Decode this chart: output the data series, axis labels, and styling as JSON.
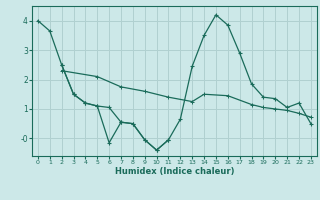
{
  "xlabel": "Humidex (Indice chaleur)",
  "bg_color": "#cce8e8",
  "grid_color": "#b0d0d0",
  "line_color": "#1a6b5a",
  "xlim": [
    -0.5,
    23.5
  ],
  "ylim": [
    -0.6,
    4.5
  ],
  "xticks": [
    0,
    1,
    2,
    3,
    4,
    5,
    6,
    7,
    8,
    9,
    10,
    11,
    12,
    13,
    14,
    15,
    16,
    17,
    18,
    19,
    20,
    21,
    22,
    23
  ],
  "yticks": [
    0,
    1,
    2,
    3,
    4
  ],
  "ytick_labels": [
    "-0",
    "1",
    "2",
    "3",
    "4"
  ],
  "line1_x": [
    0,
    1,
    2,
    3,
    4,
    5,
    6,
    7,
    8,
    9,
    10,
    11
  ],
  "line1_y": [
    4.0,
    3.65,
    2.5,
    1.5,
    1.2,
    1.1,
    -0.15,
    0.55,
    0.5,
    -0.05,
    -0.4,
    -0.05
  ],
  "line2_x": [
    2,
    3,
    4,
    5,
    6,
    7,
    8,
    9,
    10,
    11,
    12,
    13,
    14,
    15,
    16,
    17,
    18,
    19,
    20,
    21,
    22,
    23
  ],
  "line2_y": [
    2.5,
    1.5,
    1.2,
    1.1,
    1.05,
    0.55,
    0.5,
    -0.05,
    -0.4,
    -0.05,
    0.65,
    2.45,
    3.5,
    4.2,
    3.85,
    2.9,
    1.85,
    1.4,
    1.35,
    1.05,
    1.2,
    0.5
  ],
  "line3_x": [
    2,
    5,
    7,
    9,
    11,
    13,
    14,
    16,
    18,
    19,
    20,
    21,
    22,
    23
  ],
  "line3_y": [
    2.3,
    2.1,
    1.75,
    1.6,
    1.4,
    1.25,
    1.5,
    1.45,
    1.15,
    1.05,
    1.0,
    0.95,
    0.85,
    0.72
  ]
}
